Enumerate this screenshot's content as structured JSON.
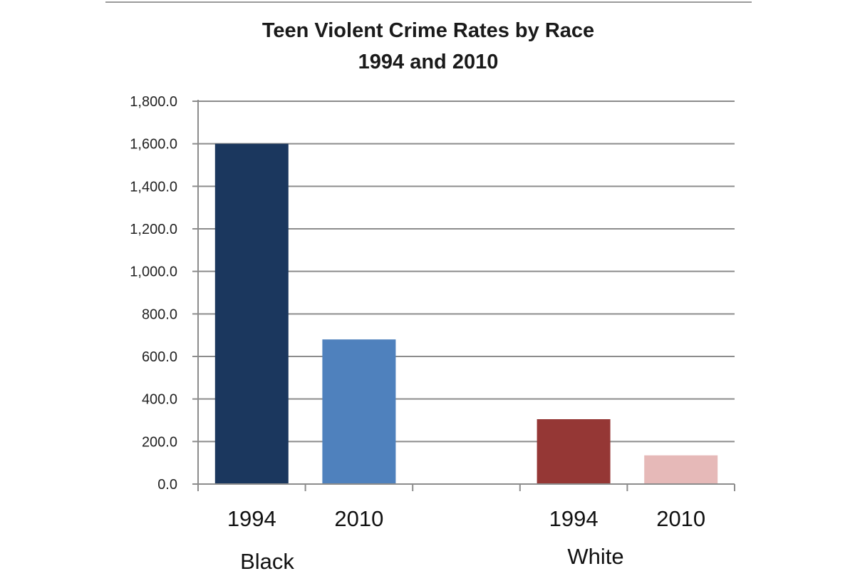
{
  "chart_data": {
    "type": "bar",
    "title": "Teen Violent Crime Rates by Race",
    "subtitle": "1994 and 2010",
    "xlabel": "",
    "ylabel": "",
    "ylim": [
      0,
      1800
    ],
    "yticks": [
      "0.0",
      "200.0",
      "400.0",
      "600.0",
      "800.0",
      "1,000.0",
      "1,200.0",
      "1,400.0",
      "1,600.0",
      "1,800.0"
    ],
    "grid": true,
    "legend": "none",
    "groups": [
      "Black",
      "White"
    ],
    "bars": [
      {
        "group": "Black",
        "label": "1994",
        "value": 1600,
        "color": "#1b375e"
      },
      {
        "group": "Black",
        "label": "2010",
        "value": 680,
        "color": "#4f81bd"
      },
      {
        "group": "White",
        "label": "1994",
        "value": 305,
        "color": "#953735"
      },
      {
        "group": "White",
        "label": "2010",
        "value": 135,
        "color": "#e6b9b8"
      }
    ]
  }
}
